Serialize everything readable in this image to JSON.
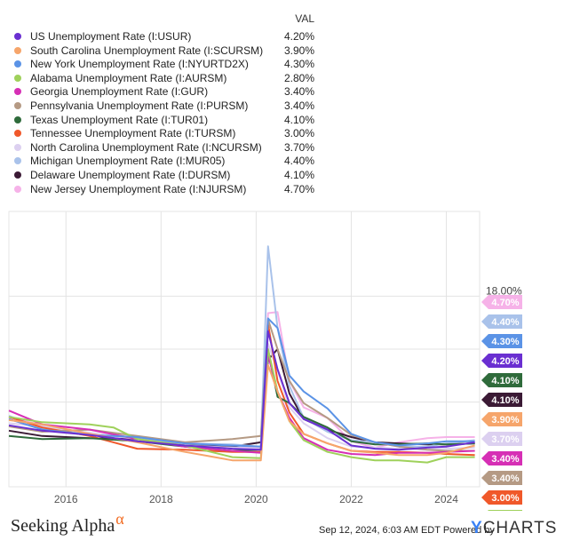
{
  "legend": {
    "val_header": "VAL",
    "rows": [
      {
        "label": "US Unemployment Rate (I:USUR)",
        "value": "4.20%",
        "color": "#6a2fd1"
      },
      {
        "label": "South Carolina Unemployment Rate (I:SCURSM)",
        "value": "3.90%",
        "color": "#f6a56b"
      },
      {
        "label": "New York Unemployment Rate (I:NYURTD2X)",
        "value": "4.30%",
        "color": "#5b93e6"
      },
      {
        "label": "Alabama Unemployment Rate (I:AURSM)",
        "value": "2.80%",
        "color": "#9fd15b"
      },
      {
        "label": "Georgia Unemployment Rate (I:GUR)",
        "value": "3.40%",
        "color": "#d62fb5"
      },
      {
        "label": "Pennsylvania Unemployment Rate (I:PURSM)",
        "value": "3.40%",
        "color": "#b59a84"
      },
      {
        "label": "Texas Unemployment Rate (I:TUR01)",
        "value": "4.10%",
        "color": "#2f6b3b"
      },
      {
        "label": "Tennessee Unemployment Rate (I:TURSM)",
        "value": "3.00%",
        "color": "#f0582a"
      },
      {
        "label": "North Carolina Unemployment Rate (I:NCURSM)",
        "value": "3.70%",
        "color": "#dcd0f0"
      },
      {
        "label": "Michigan Unemployment Rate (I:MUR05)",
        "value": "4.40%",
        "color": "#a9c2ea"
      },
      {
        "label": "Delaware Unemployment Rate (I:DURSM)",
        "value": "4.10%",
        "color": "#3b1a35"
      },
      {
        "label": "New Jersey Unemployment Rate (I:NJURSM)",
        "value": "4.70%",
        "color": "#f6b2e8"
      }
    ]
  },
  "chart_data": {
    "type": "line",
    "ylim": [
      0,
      26
    ],
    "xlim": [
      2014.8,
      2024.7
    ],
    "y_tick_labels": [
      {
        "value": 18,
        "label": "18.00%"
      }
    ],
    "gridlines_y": [
      18,
      13,
      8
    ],
    "x_ticks": [
      {
        "value": 2016,
        "label": "2016"
      },
      {
        "value": 2018,
        "label": "2018"
      },
      {
        "value": 2020,
        "label": "2020"
      },
      {
        "value": 2022,
        "label": "2022"
      },
      {
        "value": 2024,
        "label": "2024"
      }
    ],
    "series": [
      {
        "name": "US Unemployment Rate (I:USUR)",
        "color": "#6a2fd1",
        "last": "4.20%",
        "points": [
          [
            2014.8,
            5.8
          ],
          [
            2015.5,
            5.3
          ],
          [
            2016.5,
            4.9
          ],
          [
            2017.5,
            4.3
          ],
          [
            2018.5,
            3.9
          ],
          [
            2019.5,
            3.6
          ],
          [
            2020.1,
            3.5
          ],
          [
            2020.25,
            14.7
          ],
          [
            2020.45,
            11.1
          ],
          [
            2020.7,
            7.9
          ],
          [
            2021.0,
            6.4
          ],
          [
            2021.5,
            5.4
          ],
          [
            2022.0,
            3.9
          ],
          [
            2022.5,
            3.6
          ],
          [
            2023.0,
            3.5
          ],
          [
            2023.6,
            3.7
          ],
          [
            2024.0,
            3.8
          ],
          [
            2024.6,
            4.2
          ]
        ]
      },
      {
        "name": "South Carolina Unemployment Rate (I:SCURSM)",
        "color": "#f6a56b",
        "last": "3.90%",
        "points": [
          [
            2014.8,
            6.3
          ],
          [
            2015.5,
            5.9
          ],
          [
            2016.5,
            5.0
          ],
          [
            2017.5,
            4.2
          ],
          [
            2018.5,
            3.3
          ],
          [
            2019.0,
            2.9
          ],
          [
            2019.5,
            2.5
          ],
          [
            2020.1,
            2.5
          ],
          [
            2020.25,
            11.5
          ],
          [
            2020.45,
            9.0
          ],
          [
            2020.7,
            6.2
          ],
          [
            2021.0,
            5.0
          ],
          [
            2021.5,
            4.1
          ],
          [
            2022.0,
            3.4
          ],
          [
            2022.5,
            3.2
          ],
          [
            2023.0,
            3.0
          ],
          [
            2023.6,
            3.0
          ],
          [
            2024.0,
            3.2
          ],
          [
            2024.6,
            3.9
          ]
        ]
      },
      {
        "name": "New York Unemployment Rate (I:NYURTD2X)",
        "color": "#5b93e6",
        "last": "4.30%",
        "points": [
          [
            2014.8,
            6.4
          ],
          [
            2015.5,
            5.4
          ],
          [
            2016.5,
            4.9
          ],
          [
            2017.5,
            4.7
          ],
          [
            2018.5,
            4.1
          ],
          [
            2019.5,
            3.9
          ],
          [
            2020.1,
            3.8
          ],
          [
            2020.25,
            15.9
          ],
          [
            2020.45,
            15.0
          ],
          [
            2020.7,
            10.5
          ],
          [
            2021.0,
            9.0
          ],
          [
            2021.5,
            7.4
          ],
          [
            2022.0,
            5.0
          ],
          [
            2022.5,
            4.2
          ],
          [
            2023.0,
            3.9
          ],
          [
            2023.6,
            4.1
          ],
          [
            2024.0,
            4.3
          ],
          [
            2024.6,
            4.3
          ]
        ]
      },
      {
        "name": "Alabama Unemployment Rate (I:AURSM)",
        "color": "#9fd15b",
        "last": "2.80%",
        "points": [
          [
            2014.8,
            6.6
          ],
          [
            2015.5,
            6.1
          ],
          [
            2016.5,
            5.9
          ],
          [
            2017.0,
            5.6
          ],
          [
            2017.5,
            4.5
          ],
          [
            2018.5,
            3.9
          ],
          [
            2019.5,
            2.8
          ],
          [
            2020.1,
            2.7
          ],
          [
            2020.25,
            13.0
          ],
          [
            2020.45,
            9.0
          ],
          [
            2020.7,
            6.2
          ],
          [
            2021.0,
            4.4
          ],
          [
            2021.5,
            3.3
          ],
          [
            2022.0,
            2.8
          ],
          [
            2022.5,
            2.5
          ],
          [
            2023.0,
            2.5
          ],
          [
            2023.6,
            2.3
          ],
          [
            2024.0,
            2.8
          ],
          [
            2024.6,
            2.8
          ]
        ]
      },
      {
        "name": "Georgia Unemployment Rate (I:GUR)",
        "color": "#d62fb5",
        "last": "3.40%",
        "points": [
          [
            2014.8,
            7.2
          ],
          [
            2015.5,
            5.9
          ],
          [
            2016.5,
            5.4
          ],
          [
            2017.5,
            4.5
          ],
          [
            2018.5,
            3.8
          ],
          [
            2019.5,
            3.4
          ],
          [
            2020.1,
            3.2
          ],
          [
            2020.25,
            12.5
          ],
          [
            2020.45,
            9.0
          ],
          [
            2020.7,
            6.5
          ],
          [
            2021.0,
            4.6
          ],
          [
            2021.5,
            3.5
          ],
          [
            2022.0,
            3.1
          ],
          [
            2022.5,
            3.0
          ],
          [
            2023.0,
            3.2
          ],
          [
            2023.6,
            3.2
          ],
          [
            2024.0,
            3.3
          ],
          [
            2024.6,
            3.4
          ]
        ]
      },
      {
        "name": "Pennsylvania Unemployment Rate (I:PURSM)",
        "color": "#b59a84",
        "last": "3.40%",
        "points": [
          [
            2014.8,
            5.7
          ],
          [
            2015.5,
            5.2
          ],
          [
            2016.5,
            5.4
          ],
          [
            2017.5,
            4.8
          ],
          [
            2018.5,
            4.2
          ],
          [
            2019.5,
            4.5
          ],
          [
            2020.1,
            4.8
          ],
          [
            2020.25,
            15.8
          ],
          [
            2020.45,
            13.0
          ],
          [
            2020.7,
            10.0
          ],
          [
            2021.0,
            7.9
          ],
          [
            2021.5,
            6.5
          ],
          [
            2022.0,
            4.9
          ],
          [
            2022.5,
            4.2
          ],
          [
            2023.0,
            3.8
          ],
          [
            2023.6,
            3.5
          ],
          [
            2024.0,
            3.4
          ],
          [
            2024.6,
            3.4
          ]
        ]
      },
      {
        "name": "Texas Unemployment Rate (I:TUR01)",
        "color": "#2f6b3b",
        "last": "4.10%",
        "points": [
          [
            2014.8,
            4.8
          ],
          [
            2015.5,
            4.5
          ],
          [
            2016.5,
            4.6
          ],
          [
            2017.5,
            4.3
          ],
          [
            2018.5,
            3.8
          ],
          [
            2019.5,
            3.4
          ],
          [
            2020.1,
            3.5
          ],
          [
            2020.25,
            12.8
          ],
          [
            2020.45,
            8.5
          ],
          [
            2020.7,
            7.9
          ],
          [
            2021.0,
            6.6
          ],
          [
            2021.5,
            5.6
          ],
          [
            2022.0,
            4.3
          ],
          [
            2022.5,
            4.0
          ],
          [
            2023.0,
            4.0
          ],
          [
            2023.6,
            4.1
          ],
          [
            2024.0,
            4.0
          ],
          [
            2024.6,
            4.1
          ]
        ]
      },
      {
        "name": "Tennessee Unemployment Rate (I:TURSM)",
        "color": "#f0582a",
        "last": "3.00%",
        "points": [
          [
            2014.8,
            6.6
          ],
          [
            2015.5,
            5.6
          ],
          [
            2016.5,
            4.8
          ],
          [
            2017.5,
            3.6
          ],
          [
            2018.5,
            3.5
          ],
          [
            2019.5,
            3.3
          ],
          [
            2020.1,
            3.3
          ],
          [
            2020.25,
            15.4
          ],
          [
            2020.45,
            10.0
          ],
          [
            2020.7,
            7.0
          ],
          [
            2021.0,
            5.0
          ],
          [
            2021.5,
            4.1
          ],
          [
            2022.0,
            3.4
          ],
          [
            2022.5,
            3.3
          ],
          [
            2023.0,
            3.3
          ],
          [
            2023.6,
            3.2
          ],
          [
            2024.0,
            3.1
          ],
          [
            2024.6,
            3.0
          ]
        ]
      },
      {
        "name": "North Carolina Unemployment Rate (I:NCURSM)",
        "color": "#dcd0f0",
        "last": "3.70%",
        "points": [
          [
            2014.8,
            6.0
          ],
          [
            2015.5,
            5.7
          ],
          [
            2016.5,
            5.1
          ],
          [
            2017.5,
            4.5
          ],
          [
            2018.5,
            3.9
          ],
          [
            2019.5,
            3.7
          ],
          [
            2020.1,
            3.6
          ],
          [
            2020.25,
            13.5
          ],
          [
            2020.45,
            11.0
          ],
          [
            2020.7,
            7.5
          ],
          [
            2021.0,
            6.0
          ],
          [
            2021.5,
            4.6
          ],
          [
            2022.0,
            3.8
          ],
          [
            2022.5,
            3.7
          ],
          [
            2023.0,
            3.6
          ],
          [
            2023.6,
            3.5
          ],
          [
            2024.0,
            3.6
          ],
          [
            2024.6,
            3.7
          ]
        ]
      },
      {
        "name": "Michigan Unemployment Rate (I:MUR05)",
        "color": "#a9c2ea",
        "last": "4.40%",
        "points": [
          [
            2014.8,
            6.7
          ],
          [
            2015.5,
            5.5
          ],
          [
            2016.5,
            5.0
          ],
          [
            2017.5,
            4.6
          ],
          [
            2018.5,
            4.1
          ],
          [
            2019.5,
            4.0
          ],
          [
            2020.1,
            3.8
          ],
          [
            2020.25,
            22.7
          ],
          [
            2020.45,
            15.0
          ],
          [
            2020.7,
            9.5
          ],
          [
            2021.0,
            6.5
          ],
          [
            2021.5,
            5.2
          ],
          [
            2022.0,
            4.4
          ],
          [
            2022.5,
            4.2
          ],
          [
            2023.0,
            3.8
          ],
          [
            2023.6,
            3.8
          ],
          [
            2024.0,
            4.1
          ],
          [
            2024.6,
            4.4
          ]
        ]
      },
      {
        "name": "Delaware Unemployment Rate (I:DURSM)",
        "color": "#3b1a35",
        "last": "4.10%",
        "points": [
          [
            2014.8,
            5.3
          ],
          [
            2015.5,
            4.8
          ],
          [
            2016.5,
            4.6
          ],
          [
            2017.5,
            4.5
          ],
          [
            2018.5,
            3.9
          ],
          [
            2019.5,
            3.8
          ],
          [
            2020.1,
            4.2
          ],
          [
            2020.25,
            12.0
          ],
          [
            2020.45,
            13.0
          ],
          [
            2020.7,
            8.8
          ],
          [
            2021.0,
            6.4
          ],
          [
            2021.5,
            5.4
          ],
          [
            2022.0,
            4.7
          ],
          [
            2022.5,
            4.2
          ],
          [
            2023.0,
            4.1
          ],
          [
            2023.6,
            4.0
          ],
          [
            2024.0,
            4.0
          ],
          [
            2024.6,
            4.1
          ]
        ]
      },
      {
        "name": "New Jersey Unemployment Rate (I:NJURSM)",
        "color": "#f6b2e8",
        "last": "4.70%",
        "points": [
          [
            2014.8,
            6.6
          ],
          [
            2015.5,
            5.8
          ],
          [
            2016.5,
            5.0
          ],
          [
            2017.5,
            4.6
          ],
          [
            2018.5,
            4.2
          ],
          [
            2019.5,
            3.8
          ],
          [
            2020.1,
            3.7
          ],
          [
            2020.25,
            16.4
          ],
          [
            2020.45,
            16.5
          ],
          [
            2020.7,
            10.0
          ],
          [
            2021.0,
            7.5
          ],
          [
            2021.5,
            6.5
          ],
          [
            2022.0,
            4.3
          ],
          [
            2022.5,
            3.7
          ],
          [
            2023.0,
            4.2
          ],
          [
            2023.6,
            4.6
          ],
          [
            2024.0,
            4.7
          ],
          [
            2024.6,
            4.7
          ]
        ]
      }
    ]
  },
  "footer": {
    "brand": "Seeking Alpha",
    "brand_symbol": "α",
    "attribution": "Sep 12, 2024, 6:03 AM EDT Powered by",
    "ycharts_y": "Y",
    "ycharts_rest": "CHARTS"
  }
}
